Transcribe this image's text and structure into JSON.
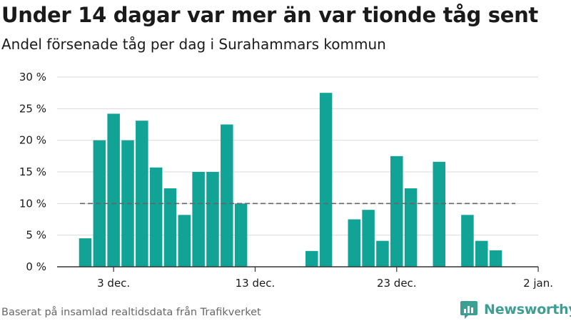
{
  "title": "Under 14 dagar var mer än var tionde tåg sent",
  "subtitle": "Andel försenade tåg per dag i Surahammars kommun",
  "footer": "Baserat på insamlad realtidsdata från Trafikverket",
  "brand": "Newsworthy",
  "colors": {
    "bar": "#10a396",
    "grid": "#d9d9d9",
    "reference": "#666666",
    "brand": "#3d9e93"
  },
  "chart_data": {
    "type": "bar",
    "x": [
      "2023-12-01",
      "2023-12-02",
      "2023-12-03",
      "2023-12-04",
      "2023-12-05",
      "2023-12-06",
      "2023-12-07",
      "2023-12-08",
      "2023-12-09",
      "2023-12-10",
      "2023-12-11",
      "2023-12-12",
      "2023-12-13",
      "2023-12-14",
      "2023-12-15",
      "2023-12-16",
      "2023-12-17",
      "2023-12-18",
      "2023-12-19",
      "2023-12-20",
      "2023-12-21",
      "2023-12-22",
      "2023-12-23",
      "2023-12-24",
      "2023-12-25",
      "2023-12-26",
      "2023-12-27",
      "2023-12-28",
      "2023-12-29",
      "2023-12-30",
      "2023-12-31"
    ],
    "values": [
      4.5,
      20,
      24.2,
      20,
      23.1,
      15.7,
      12.4,
      8.2,
      15,
      15,
      22.5,
      10,
      null,
      null,
      null,
      null,
      2.5,
      27.5,
      null,
      7.5,
      9,
      4.1,
      17.5,
      12.4,
      null,
      16.6,
      null,
      8.2,
      4.1,
      2.6,
      null
    ],
    "reference_line": 10,
    "y_ticks": [
      0,
      5,
      10,
      15,
      20,
      25,
      30
    ],
    "y_tick_labels": [
      "0 %",
      "5 %",
      "10 %",
      "15 %",
      "20 %",
      "25 %",
      "30 %"
    ],
    "ylim": [
      0,
      30
    ],
    "x_ticks": [
      {
        "date": "2023-12-03",
        "label": "3 dec."
      },
      {
        "date": "2023-12-13",
        "label": "13 dec."
      },
      {
        "date": "2023-12-23",
        "label": "23 dec."
      },
      {
        "date": "2024-01-02",
        "label": "2 jan."
      }
    ],
    "grid": true,
    "legend": "none"
  }
}
